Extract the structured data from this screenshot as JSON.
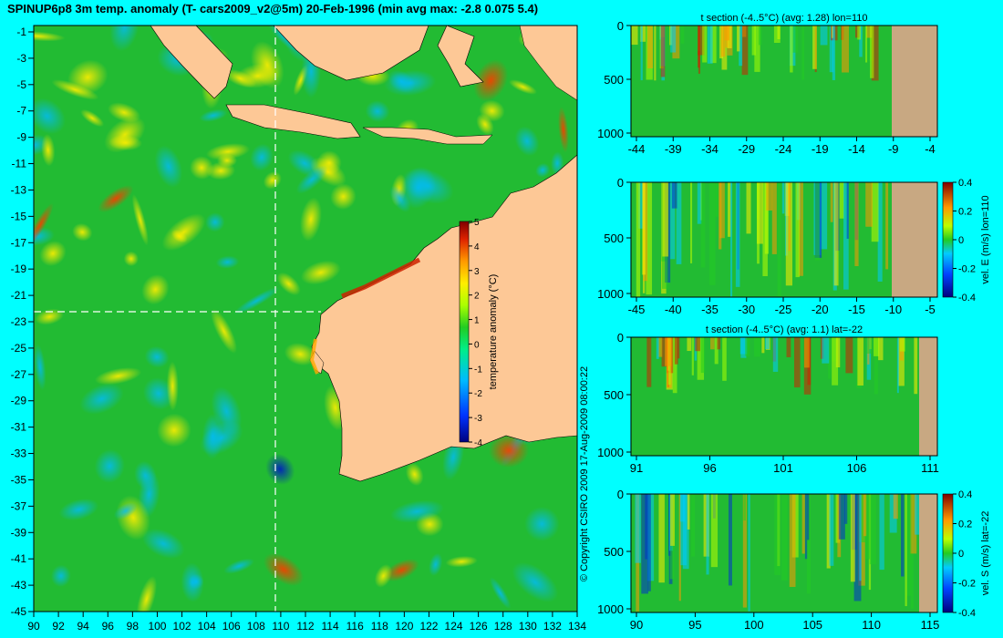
{
  "title": "SPINUP6p8 3m temp. anomaly (T- cars2009_v2@5m) 20-Feb-1996 (min avg max: -2.8 0.075 5.4)",
  "copyright": "© Copyright CSIRO 2009   17-Aug-2009 08:00:22",
  "colors": {
    "background": "#00ffff",
    "land": "#fdc896",
    "section_land": "#c8a882",
    "ocean": "#22bb33"
  },
  "map": {
    "lon_ticks": [
      "90",
      "92",
      "94",
      "96",
      "98",
      "100",
      "102",
      "104",
      "106",
      "108",
      "110",
      "112",
      "114",
      "116",
      "118",
      "120",
      "122",
      "124",
      "126",
      "128",
      "130",
      "132",
      "134"
    ],
    "lat_ticks": [
      "-1",
      "-3",
      "-5",
      "-7",
      "-9",
      "-11",
      "-13",
      "-15",
      "-17",
      "-19",
      "-21",
      "-23",
      "-25",
      "-27",
      "-29",
      "-31",
      "-33",
      "-35",
      "-37",
      "-39",
      "-41",
      "-43",
      "-45"
    ],
    "colorbar": {
      "label": "temperature anomaly (°C)",
      "ticks": [
        "5",
        "4",
        "3",
        "2",
        "1",
        "0",
        "-1",
        "-2",
        "-3",
        "-4"
      ]
    },
    "crosshair": {
      "lon": 110,
      "lat": -22
    }
  },
  "panels": [
    {
      "title": "t section (-4..5°C) (avg: 1.28) lon=110",
      "y_ticks": [
        "0",
        "500",
        "1000"
      ],
      "x_ticks": [
        "-44",
        "-39",
        "-34",
        "-29",
        "-24",
        "-19",
        "-14",
        "-9",
        "-4"
      ],
      "colorbar": null
    },
    {
      "title": "",
      "y_ticks": [
        "0",
        "500",
        "1000"
      ],
      "x_ticks": [
        "-45",
        "-40",
        "-35",
        "-30",
        "-25",
        "-20",
        "-15",
        "-10",
        "-5"
      ],
      "colorbar": {
        "label": "vel. E (m/s) lon=110",
        "ticks": [
          "0.4",
          "0.2",
          "0",
          "-0.2",
          "-0.4"
        ]
      }
    },
    {
      "title": "t section (-4..5°C) (avg: 1.1) lat=-22",
      "y_ticks": [
        "0",
        "500",
        "1000"
      ],
      "x_ticks": [
        "91",
        "96",
        "101",
        "106",
        "111"
      ],
      "colorbar": null
    },
    {
      "title": "",
      "y_ticks": [
        "0",
        "500",
        "1000"
      ],
      "x_ticks": [
        "90",
        "95",
        "100",
        "105",
        "110",
        "115"
      ],
      "colorbar": {
        "label": "vel. S (m/s) lat=-22",
        "ticks": [
          "0.4",
          "0.2",
          "0",
          "-0.2",
          "-0.4"
        ]
      }
    }
  ]
}
